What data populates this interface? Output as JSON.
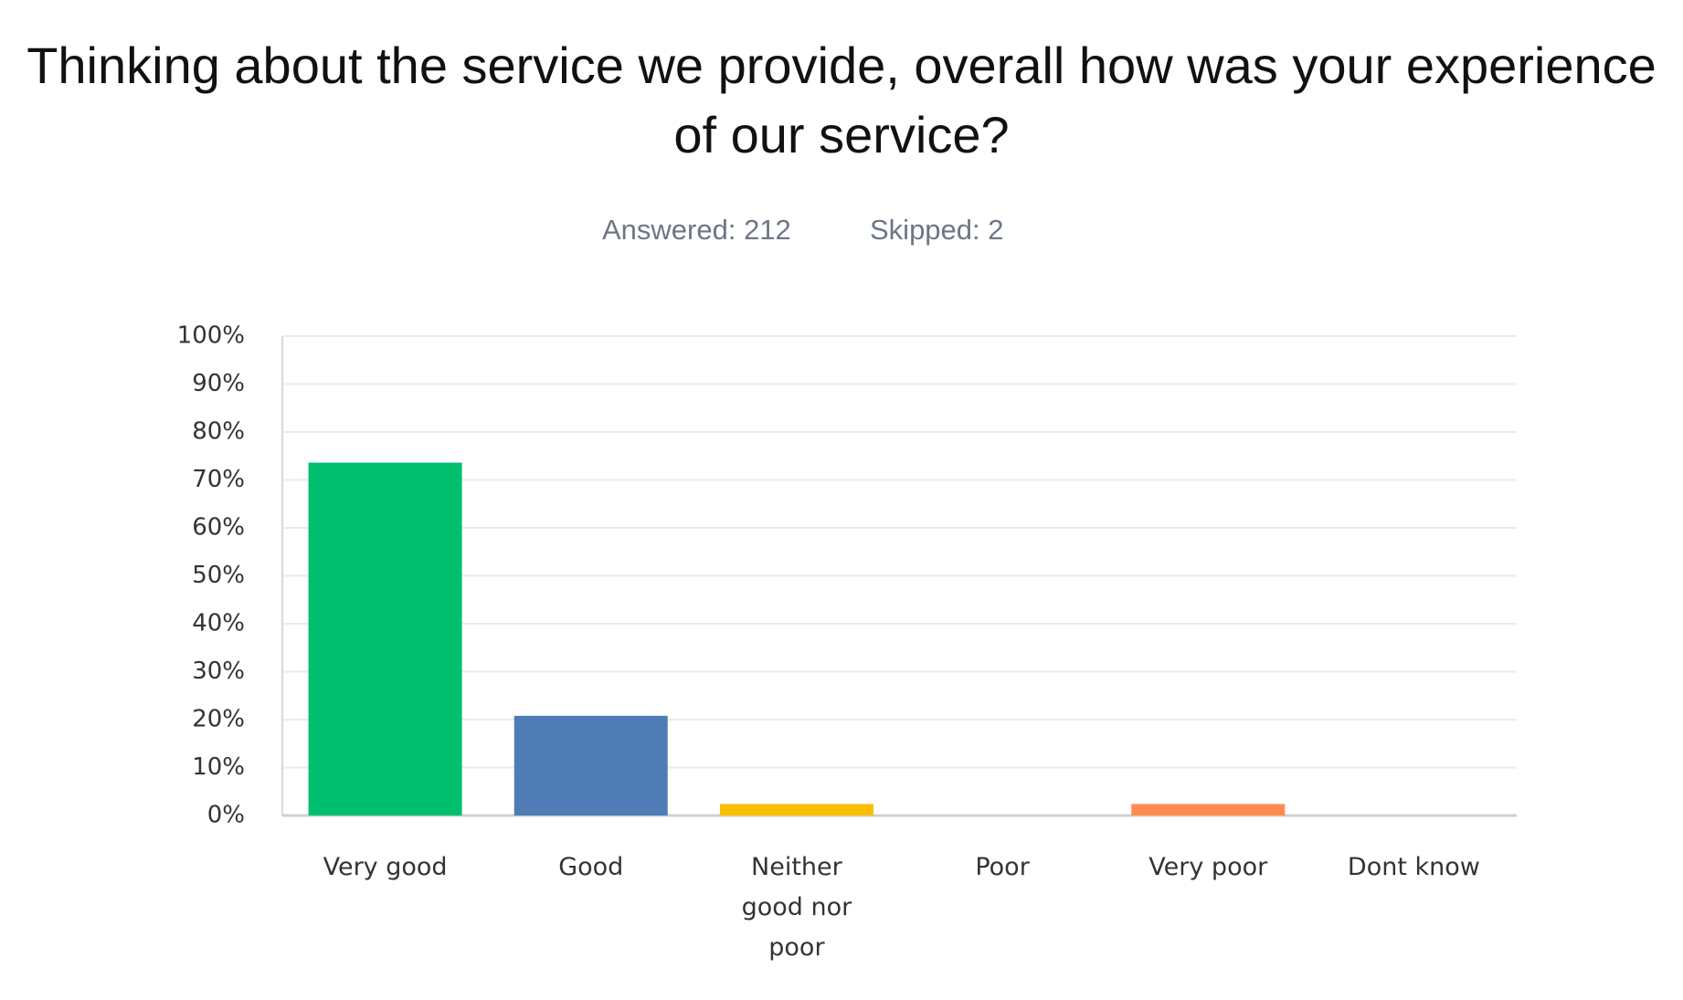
{
  "chart_data": {
    "type": "bar",
    "title": "Thinking about the service we provide, overall how was your experience of our service?",
    "answered": "Answered: 212",
    "skipped": "Skipped: 2",
    "categories": [
      "Very good",
      "Good",
      "Neither good nor poor",
      "Poor",
      "Very poor",
      "Dont know"
    ],
    "values": [
      73.6,
      20.8,
      2.4,
      0,
      2.4,
      0
    ],
    "colors": [
      "#00bf6f",
      "#507cb6",
      "#f9be00",
      "#6bc8cd",
      "#ff8b4f",
      "#7f7fff"
    ],
    "ylim": [
      0,
      100
    ],
    "yticks": [
      {
        "value": 0,
        "label": "0%"
      },
      {
        "value": 10,
        "label": "10%"
      },
      {
        "value": 20,
        "label": "20%"
      },
      {
        "value": 30,
        "label": "30%"
      },
      {
        "value": 40,
        "label": "40%"
      },
      {
        "value": 50,
        "label": "50%"
      },
      {
        "value": 60,
        "label": "60%"
      },
      {
        "value": 70,
        "label": "70%"
      },
      {
        "value": 80,
        "label": "80%"
      },
      {
        "value": 90,
        "label": "90%"
      },
      {
        "value": 100,
        "label": "100%"
      }
    ],
    "grid": true
  }
}
